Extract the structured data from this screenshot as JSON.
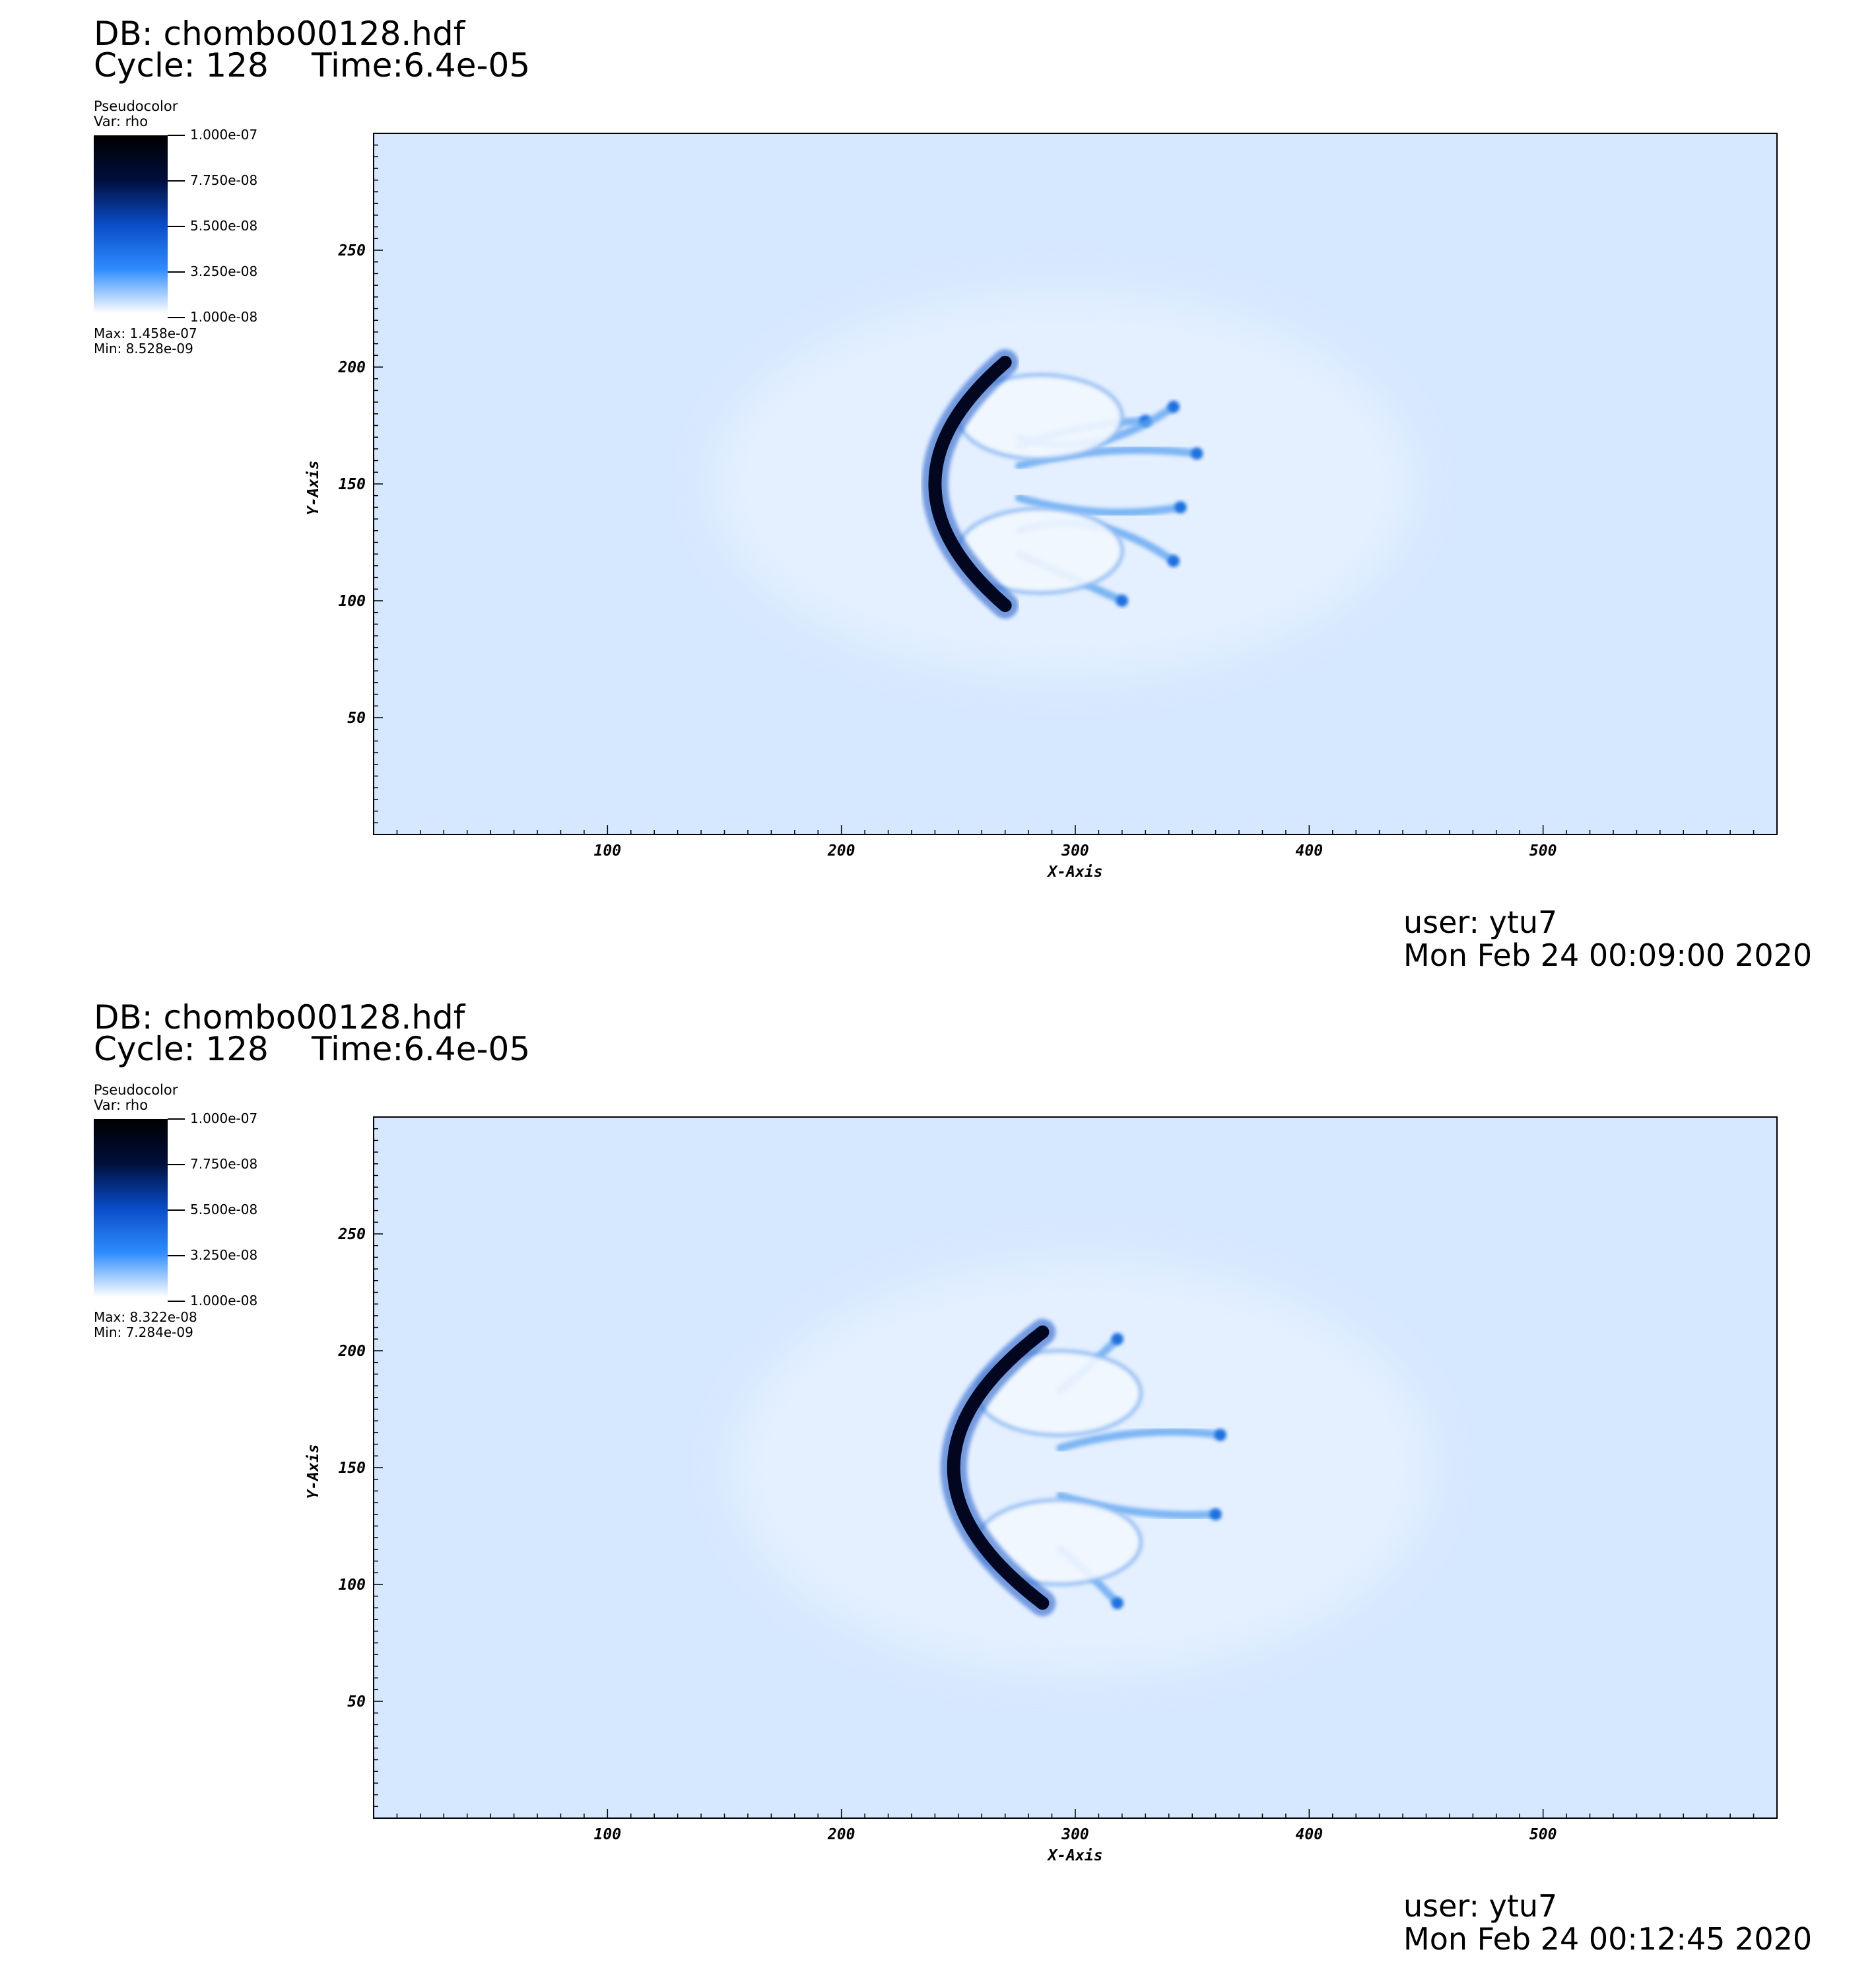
{
  "panels": [
    {
      "db_label": "DB: chombo00128.hdf",
      "cycle_label": "Cycle: 128",
      "time_label": "Time:6.4e-05",
      "plot_type": "Pseudocolor",
      "var_label": "Var: rho",
      "legend_ticks": [
        "1.000e-07",
        "7.750e-08",
        "5.500e-08",
        "3.250e-08",
        "1.000e-08"
      ],
      "max_label": "Max:  1.458e-07",
      "min_label": "Min:  8.528e-09",
      "user_label": "user: ytu7",
      "date_label": "Mon Feb 24 00:09:00 2020"
    },
    {
      "db_label": "DB: chombo00128.hdf",
      "cycle_label": "Cycle: 128",
      "time_label": "Time:6.4e-05",
      "plot_type": "Pseudocolor",
      "var_label": "Var: rho",
      "legend_ticks": [
        "1.000e-07",
        "7.750e-08",
        "5.500e-08",
        "3.250e-08",
        "1.000e-08"
      ],
      "max_label": "Max:  8.322e-08",
      "min_label": "Min:  7.284e-09",
      "user_label": "user: ytu7",
      "date_label": "Mon Feb 24 00:12:45 2020"
    }
  ],
  "chart_data": [
    {
      "type": "heatmap",
      "title": "",
      "xlabel": "X-Axis",
      "ylabel": "Y-Axis",
      "xlim": [
        0,
        600
      ],
      "ylim": [
        0,
        300
      ],
      "xticks": [
        100,
        200,
        300,
        400,
        500
      ],
      "yticks": [
        50,
        100,
        150,
        200,
        250
      ],
      "colorbar": {
        "min": 1e-08,
        "max": 1e-07,
        "colors": [
          "#ffffff",
          "#2e8cff",
          "#0a4cc8",
          "#000f3c",
          "#000000"
        ]
      },
      "background_color": "#d6e8ff",
      "features": {
        "front_center": [
          240,
          150
        ],
        "front_half_height": 52,
        "front_curvature": 30,
        "filament_tips": [
          [
            330,
            177
          ],
          [
            342,
            183
          ],
          [
            352,
            163
          ],
          [
            345,
            140
          ],
          [
            342,
            117
          ],
          [
            320,
            100
          ]
        ]
      }
    },
    {
      "type": "heatmap",
      "title": "",
      "xlabel": "X-Axis",
      "ylabel": "Y-Axis",
      "xlim": [
        0,
        600
      ],
      "ylim": [
        0,
        300
      ],
      "xticks": [
        100,
        200,
        300,
        400,
        500
      ],
      "yticks": [
        50,
        100,
        150,
        200,
        250
      ],
      "colorbar": {
        "min": 1e-08,
        "max": 1e-07,
        "colors": [
          "#ffffff",
          "#2e8cff",
          "#0a4cc8",
          "#000f3c",
          "#000000"
        ]
      },
      "background_color": "#d6e8ff",
      "features": {
        "front_center": [
          248,
          150
        ],
        "front_half_height": 58,
        "front_curvature": 38,
        "filament_tips": [
          [
            362,
            164
          ],
          [
            360,
            130
          ],
          [
            318,
            205
          ],
          [
            318,
            92
          ]
        ]
      }
    }
  ]
}
